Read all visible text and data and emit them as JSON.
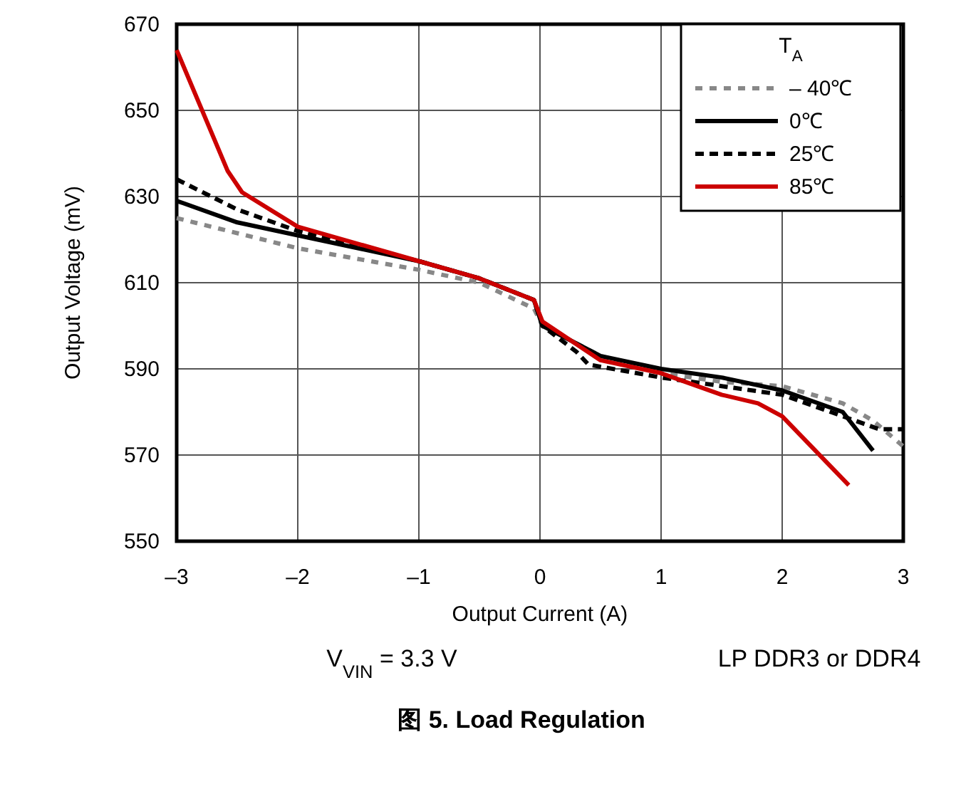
{
  "chart_data": {
    "type": "line",
    "title": "图 5. Load Regulation",
    "xlabel": "Output Current (A)",
    "ylabel": "Output Voltage (mV)",
    "legend_title": "T$_{A}$",
    "annotations": [
      "V$_{VIN}$ = 3.3 V",
      "LP DDR3 or DDR4"
    ],
    "xlim": [
      -3,
      3
    ],
    "ylim": [
      550,
      670
    ],
    "xticks": [
      {
        "value": -3,
        "label": "–3"
      },
      {
        "value": -2,
        "label": "–2"
      },
      {
        "value": -1,
        "label": "–1"
      },
      0,
      1,
      2,
      3
    ],
    "yticks": [
      550,
      570,
      590,
      610,
      630,
      650,
      670
    ],
    "grid": true,
    "legend": "top right",
    "marker": "none",
    "series": [
      {
        "name": "– 40℃",
        "color": "#888888",
        "line_style": "dotted",
        "x": [
          -3,
          -2,
          -1,
          -0.5,
          -0.05,
          0.02,
          0.5,
          1,
          1.5,
          2,
          2.5,
          2.75,
          3
        ],
        "values": [
          625,
          618,
          613,
          610,
          604,
          600,
          593,
          589,
          587,
          586,
          582,
          578,
          572
        ]
      },
      {
        "name": "0℃",
        "color": "#000000",
        "line_style": "solid",
        "x": [
          -3,
          -2.5,
          -2,
          -1,
          -0.5,
          -0.05,
          0.02,
          0.5,
          1,
          1.5,
          2,
          2.5,
          2.75
        ],
        "values": [
          629,
          624,
          621,
          615,
          611,
          606,
          600,
          593,
          590,
          588,
          585,
          580,
          571
        ]
      },
      {
        "name": "25℃",
        "color": "#000000",
        "line_style": "dashed",
        "x": [
          -3,
          -2.5,
          -2,
          -1,
          -0.5,
          -0.05,
          0.02,
          0.3,
          0.4,
          1,
          1.5,
          2,
          2.5,
          2.8,
          3
        ],
        "values": [
          634,
          627,
          622,
          615,
          611,
          606,
          600,
          594,
          591,
          588,
          586,
          584,
          579,
          576,
          576
        ]
      },
      {
        "name": "85℃",
        "color": "#cc0000",
        "line_style": "solid",
        "x": [
          -3,
          -2.58,
          -2.46,
          -2,
          -1,
          -0.5,
          -0.05,
          0.02,
          0.5,
          1,
          1.5,
          1.8,
          2,
          2.55
        ],
        "values": [
          664,
          636,
          631,
          623,
          615,
          611,
          606,
          601,
          592,
          589,
          584,
          582,
          579,
          563
        ]
      }
    ]
  }
}
